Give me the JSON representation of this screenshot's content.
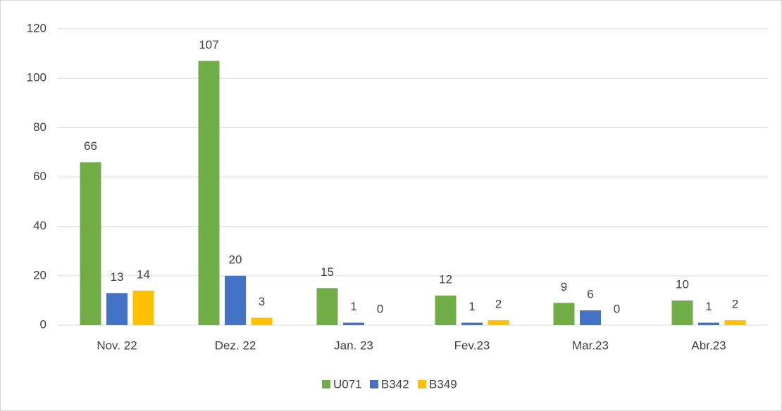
{
  "chart_data": {
    "type": "bar",
    "categories": [
      "Nov. 22",
      "Dez. 22",
      "Jan. 23",
      "Fev.23",
      "Mar.23",
      "Abr.23"
    ],
    "series": [
      {
        "name": "U071",
        "color": "#70ad47",
        "values": [
          66,
          107,
          15,
          12,
          9,
          10
        ]
      },
      {
        "name": "B342",
        "color": "#4472c4",
        "values": [
          13,
          20,
          1,
          1,
          6,
          1
        ]
      },
      {
        "name": "B349",
        "color": "#ffc000",
        "values": [
          14,
          3,
          0,
          2,
          0,
          2
        ]
      }
    ],
    "ylim": [
      0,
      120
    ],
    "yticks": [
      0,
      20,
      40,
      60,
      80,
      100,
      120
    ],
    "grid": true,
    "legend": "bottom"
  }
}
